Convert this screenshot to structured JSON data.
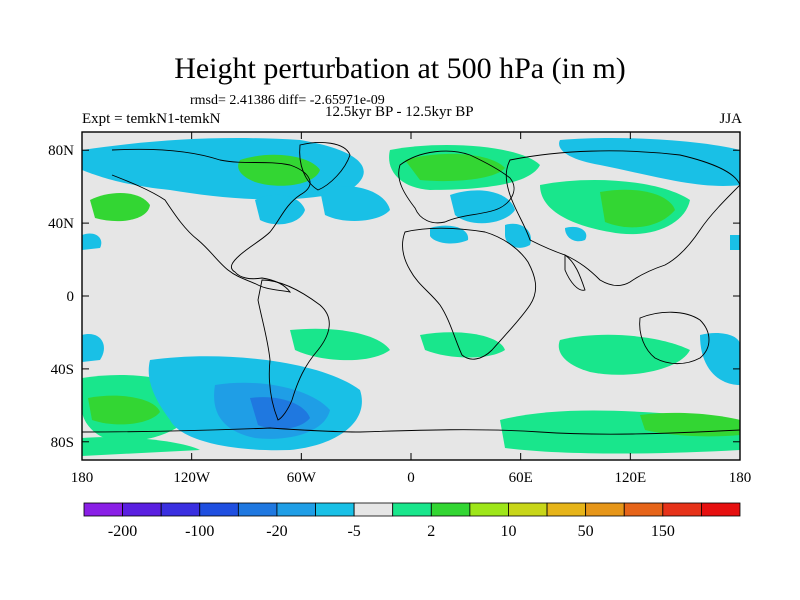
{
  "title": "Height perturbation at 500 hPa (in m)",
  "stats": "rmsd= 2.41386 diff= -2.65971e-09",
  "experiment": "Expt = temkN1-temkN",
  "period": "12.5kyr BP - 12.5kyr BP",
  "season": "JJA",
  "lat_labels": [
    "80N",
    "40N",
    "0",
    "40S",
    "80S"
  ],
  "lon_labels": [
    "180",
    "120W",
    "60W",
    "0",
    "60E",
    "120E",
    "180"
  ],
  "colorbar": {
    "colors": [
      "#8a1fe6",
      "#5a1fe0",
      "#3a2fe0",
      "#1f4fe0",
      "#1f78e0",
      "#1f9ee6",
      "#19c0e6",
      "#e6e6e6",
      "#19e68c",
      "#33d633",
      "#9ee619",
      "#c8d619",
      "#e6b419",
      "#e69619",
      "#e66419",
      "#e63219",
      "#e60f0f"
    ],
    "labels": [
      "-200",
      "-100",
      "-20",
      "-5",
      "2",
      "10",
      "50",
      "150"
    ]
  }
}
